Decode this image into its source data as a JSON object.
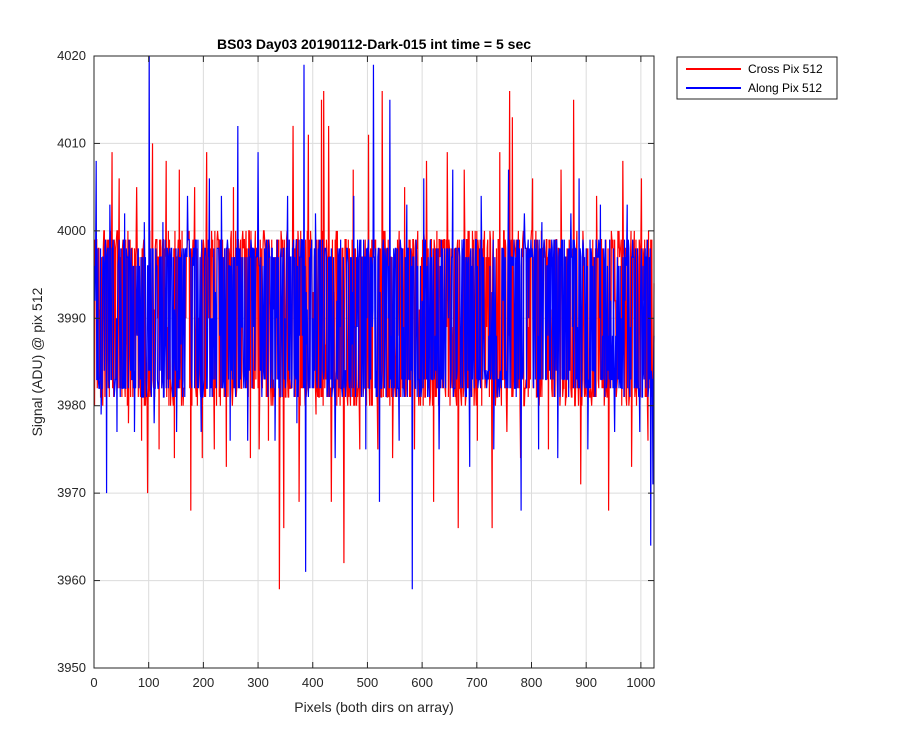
{
  "chart_data": {
    "type": "line",
    "title": "BS03 Day03 20190112-Dark-015 int time = 5 sec",
    "xlabel": "Pixels (both dirs on array)",
    "ylabel": "Signal (ADU) @ pix 512",
    "xlim": [
      0,
      1024
    ],
    "ylim": [
      3950,
      4020
    ],
    "xticks": [
      0,
      100,
      200,
      300,
      400,
      500,
      600,
      700,
      800,
      900,
      1000
    ],
    "yticks": [
      3950,
      3960,
      3970,
      3980,
      3990,
      4000,
      4010,
      4020
    ],
    "grid": true,
    "legend_position": "outside-top-right",
    "num_points": 1024,
    "series": [
      {
        "name": "Cross Pix 512",
        "color": "#ff0000",
        "mean": 3990,
        "min_range": [
          3980,
          3983
        ],
        "max_range": [
          3997,
          4000
        ],
        "spikes": [
          {
            "x": 2,
            "y": 3994
          },
          {
            "x": 8,
            "y": 3998
          },
          {
            "x": 18,
            "y": 4000
          },
          {
            "x": 32,
            "y": 4009
          },
          {
            "x": 45,
            "y": 4006
          },
          {
            "x": 62,
            "y": 3978
          },
          {
            "x": 77,
            "y": 4005
          },
          {
            "x": 86,
            "y": 3976
          },
          {
            "x": 97,
            "y": 3970
          },
          {
            "x": 106,
            "y": 4010
          },
          {
            "x": 118,
            "y": 3975
          },
          {
            "x": 131,
            "y": 4008
          },
          {
            "x": 146,
            "y": 3974
          },
          {
            "x": 155,
            "y": 4007
          },
          {
            "x": 176,
            "y": 3968
          },
          {
            "x": 183,
            "y": 4005
          },
          {
            "x": 197,
            "y": 3974
          },
          {
            "x": 205,
            "y": 4009
          },
          {
            "x": 219,
            "y": 3975
          },
          {
            "x": 241,
            "y": 3973
          },
          {
            "x": 254,
            "y": 4005
          },
          {
            "x": 285,
            "y": 3974
          },
          {
            "x": 301,
            "y": 3975
          },
          {
            "x": 318,
            "y": 3976
          },
          {
            "x": 338,
            "y": 3959
          },
          {
            "x": 346,
            "y": 3966
          },
          {
            "x": 363,
            "y": 4012
          },
          {
            "x": 374,
            "y": 3969
          },
          {
            "x": 391,
            "y": 4011
          },
          {
            "x": 405,
            "y": 3979
          },
          {
            "x": 415,
            "y": 4015
          },
          {
            "x": 419,
            "y": 4016
          },
          {
            "x": 428,
            "y": 4012
          },
          {
            "x": 433,
            "y": 3969
          },
          {
            "x": 456,
            "y": 3962
          },
          {
            "x": 473,
            "y": 4007
          },
          {
            "x": 485,
            "y": 3975
          },
          {
            "x": 501,
            "y": 4011
          },
          {
            "x": 518,
            "y": 3975
          },
          {
            "x": 526,
            "y": 4016
          },
          {
            "x": 531,
            "y": 4000
          },
          {
            "x": 545,
            "y": 3974
          },
          {
            "x": 567,
            "y": 4005
          },
          {
            "x": 585,
            "y": 3975
          },
          {
            "x": 607,
            "y": 4008
          },
          {
            "x": 620,
            "y": 3969
          },
          {
            "x": 645,
            "y": 4009
          },
          {
            "x": 665,
            "y": 3966
          },
          {
            "x": 676,
            "y": 4007
          },
          {
            "x": 700,
            "y": 3976
          },
          {
            "x": 727,
            "y": 3966
          },
          {
            "x": 741,
            "y": 4009
          },
          {
            "x": 754,
            "y": 3977
          },
          {
            "x": 759,
            "y": 4016
          },
          {
            "x": 764,
            "y": 4013
          },
          {
            "x": 779,
            "y": 3974
          },
          {
            "x": 801,
            "y": 4006
          },
          {
            "x": 830,
            "y": 3975
          },
          {
            "x": 853,
            "y": 4007
          },
          {
            "x": 876,
            "y": 4015
          },
          {
            "x": 889,
            "y": 3971
          },
          {
            "x": 918,
            "y": 4004
          },
          {
            "x": 940,
            "y": 3968
          },
          {
            "x": 966,
            "y": 4008
          },
          {
            "x": 982,
            "y": 3973
          },
          {
            "x": 1000,
            "y": 4006
          },
          {
            "x": 1012,
            "y": 3976
          },
          {
            "x": 1023,
            "y": 3994
          }
        ]
      },
      {
        "name": "Along Pix 512",
        "color": "#0000ff",
        "mean": 3990,
        "min_range": [
          3981,
          3984
        ],
        "max_range": [
          3996,
          3999
        ],
        "spikes": [
          {
            "x": 1,
            "y": 3992
          },
          {
            "x": 3,
            "y": 4008
          },
          {
            "x": 12,
            "y": 3979
          },
          {
            "x": 22,
            "y": 3970
          },
          {
            "x": 28,
            "y": 4003
          },
          {
            "x": 41,
            "y": 3977
          },
          {
            "x": 55,
            "y": 4002
          },
          {
            "x": 73,
            "y": 3977
          },
          {
            "x": 91,
            "y": 4001
          },
          {
            "x": 100,
            "y": 4020
          },
          {
            "x": 109,
            "y": 3978
          },
          {
            "x": 125,
            "y": 4001
          },
          {
            "x": 150,
            "y": 3977
          },
          {
            "x": 170,
            "y": 4004
          },
          {
            "x": 195,
            "y": 3977
          },
          {
            "x": 210,
            "y": 4006
          },
          {
            "x": 232,
            "y": 4004
          },
          {
            "x": 248,
            "y": 3976
          },
          {
            "x": 262,
            "y": 4012
          },
          {
            "x": 280,
            "y": 3976
          },
          {
            "x": 299,
            "y": 4009
          },
          {
            "x": 330,
            "y": 3976
          },
          {
            "x": 353,
            "y": 4004
          },
          {
            "x": 370,
            "y": 3978
          },
          {
            "x": 383,
            "y": 4019
          },
          {
            "x": 386,
            "y": 3961
          },
          {
            "x": 404,
            "y": 4002
          },
          {
            "x": 440,
            "y": 3974
          },
          {
            "x": 474,
            "y": 4004
          },
          {
            "x": 496,
            "y": 3975
          },
          {
            "x": 510,
            "y": 4019
          },
          {
            "x": 521,
            "y": 3969
          },
          {
            "x": 540,
            "y": 4015
          },
          {
            "x": 557,
            "y": 3976
          },
          {
            "x": 571,
            "y": 4003
          },
          {
            "x": 581,
            "y": 3959
          },
          {
            "x": 602,
            "y": 4006
          },
          {
            "x": 630,
            "y": 3975
          },
          {
            "x": 655,
            "y": 4007
          },
          {
            "x": 686,
            "y": 3973
          },
          {
            "x": 707,
            "y": 4004
          },
          {
            "x": 730,
            "y": 3975
          },
          {
            "x": 757,
            "y": 4007
          },
          {
            "x": 780,
            "y": 3968
          },
          {
            "x": 786,
            "y": 4002
          },
          {
            "x": 812,
            "y": 3975
          },
          {
            "x": 818,
            "y": 4001
          },
          {
            "x": 847,
            "y": 3974
          },
          {
            "x": 871,
            "y": 4002
          },
          {
            "x": 886,
            "y": 4006
          },
          {
            "x": 902,
            "y": 3975
          },
          {
            "x": 925,
            "y": 4003
          },
          {
            "x": 951,
            "y": 3977
          },
          {
            "x": 974,
            "y": 4003
          },
          {
            "x": 997,
            "y": 3977
          },
          {
            "x": 1007,
            "y": 3998
          },
          {
            "x": 1017,
            "y": 3964
          },
          {
            "x": 1021,
            "y": 3971
          }
        ]
      }
    ]
  }
}
